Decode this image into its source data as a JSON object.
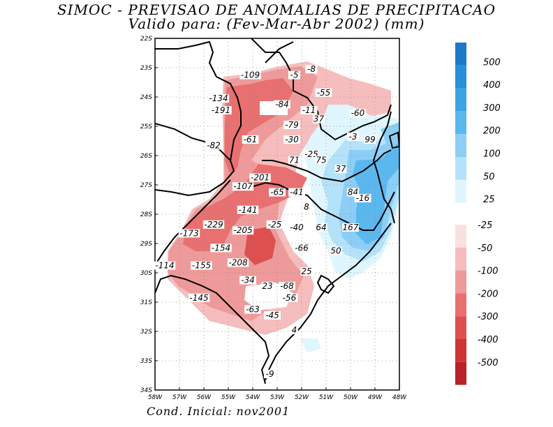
{
  "title": {
    "line1": "SIMOC - PREVISAO DE ANOMALIAS DE PRECIPITACAO",
    "line2": "Valido para: (Fev-Mar-Abr 2002) (mm)"
  },
  "footer": "Cond. Inicial: nov2001",
  "map": {
    "lat_labels": [
      "22S",
      "23S",
      "24S",
      "25S",
      "26S",
      "27S",
      "28S",
      "29S",
      "30S",
      "31S",
      "32S",
      "33S",
      "34S"
    ],
    "lon_labels": [
      "58W",
      "57W",
      "56W",
      "55W",
      "54W",
      "53W",
      "52W",
      "51W",
      "50W",
      "49W",
      "48W"
    ],
    "lon_range": [
      -58,
      -48
    ],
    "lat_range": [
      -34,
      -22
    ],
    "value_labels": [
      {
        "text": "-109",
        "lon": -54.1,
        "lat": -23.3
      },
      {
        "text": "-5",
        "lon": -52.3,
        "lat": -23.3
      },
      {
        "text": "-8",
        "lon": -51.6,
        "lat": -23.1
      },
      {
        "text": "-55",
        "lon": -51.1,
        "lat": -23.9
      },
      {
        "text": "-134",
        "lon": -55.4,
        "lat": -24.1
      },
      {
        "text": "-191",
        "lon": -55.3,
        "lat": -24.5
      },
      {
        "text": "-84",
        "lon": -52.8,
        "lat": -24.3
      },
      {
        "text": "-11",
        "lon": -51.7,
        "lat": -24.5
      },
      {
        "text": "-60",
        "lon": -49.7,
        "lat": -24.6
      },
      {
        "text": "37",
        "lon": -51.3,
        "lat": -24.8
      },
      {
        "text": "-79",
        "lon": -52.4,
        "lat": -25.0
      },
      {
        "text": "-3",
        "lon": -49.9,
        "lat": -25.4
      },
      {
        "text": "99",
        "lon": -49.2,
        "lat": -25.5
      },
      {
        "text": "-82",
        "lon": -55.6,
        "lat": -25.7
      },
      {
        "text": "-61",
        "lon": -54.1,
        "lat": -25.5
      },
      {
        "text": "-30",
        "lon": -52.4,
        "lat": -25.5
      },
      {
        "text": "-25",
        "lon": -51.6,
        "lat": -26.0
      },
      {
        "text": "71",
        "lon": -52.3,
        "lat": -26.2
      },
      {
        "text": "75",
        "lon": -51.2,
        "lat": -26.2
      },
      {
        "text": "37",
        "lon": -50.4,
        "lat": -26.5
      },
      {
        "text": "-201",
        "lon": -53.7,
        "lat": -26.8
      },
      {
        "text": "-107",
        "lon": -54.4,
        "lat": -27.1
      },
      {
        "text": "-65",
        "lon": -53.0,
        "lat": -27.3
      },
      {
        "text": "-41",
        "lon": -52.2,
        "lat": -27.3
      },
      {
        "text": "84",
        "lon": -49.9,
        "lat": -27.3
      },
      {
        "text": "-16",
        "lon": -49.5,
        "lat": -27.5
      },
      {
        "text": "-141",
        "lon": -54.2,
        "lat": -27.9
      },
      {
        "text": "8",
        "lon": -51.8,
        "lat": -27.8
      },
      {
        "text": "-229",
        "lon": -55.6,
        "lat": -28.4
      },
      {
        "text": "-25",
        "lon": -53.1,
        "lat": -28.4
      },
      {
        "text": "-40",
        "lon": -52.2,
        "lat": -28.5
      },
      {
        "text": "64",
        "lon": -51.2,
        "lat": -28.5
      },
      {
        "text": "167",
        "lon": -50.0,
        "lat": -28.5
      },
      {
        "text": "-173",
        "lon": -56.6,
        "lat": -28.7
      },
      {
        "text": "-205",
        "lon": -54.4,
        "lat": -28.6
      },
      {
        "text": "-154",
        "lon": -55.3,
        "lat": -29.2
      },
      {
        "text": "-66",
        "lon": -52.0,
        "lat": -29.2
      },
      {
        "text": "50",
        "lon": -50.6,
        "lat": -29.3
      },
      {
        "text": "-208",
        "lon": -54.6,
        "lat": -29.7
      },
      {
        "text": "-114",
        "lon": -57.6,
        "lat": -29.8
      },
      {
        "text": "-155",
        "lon": -56.1,
        "lat": -29.8
      },
      {
        "text": "25",
        "lon": -51.8,
        "lat": -30.0
      },
      {
        "text": "-34",
        "lon": -54.2,
        "lat": -30.3
      },
      {
        "text": "23",
        "lon": -53.4,
        "lat": -30.5
      },
      {
        "text": "-68",
        "lon": -52.6,
        "lat": -30.5
      },
      {
        "text": "-145",
        "lon": -56.2,
        "lat": -30.9
      },
      {
        "text": "-56",
        "lon": -52.5,
        "lat": -30.9
      },
      {
        "text": "-63",
        "lon": -54.0,
        "lat": -31.3
      },
      {
        "text": "-45",
        "lon": -53.2,
        "lat": -31.5
      },
      {
        "text": "4",
        "lon": -52.3,
        "lat": -32.0
      },
      {
        "text": "-9",
        "lon": -53.3,
        "lat": -33.5
      }
    ]
  },
  "legend": {
    "positive": [
      {
        "label": "500",
        "color": "#1e78c8"
      },
      {
        "label": "400",
        "color": "#2890d6"
      },
      {
        "label": "300",
        "color": "#3ca4e2"
      },
      {
        "label": "200",
        "color": "#5ab8ee"
      },
      {
        "label": "100",
        "color": "#8ccef6"
      },
      {
        "label": "50",
        "color": "#b4e2fa"
      },
      {
        "label": "25",
        "color": "#dff6ff"
      }
    ],
    "negative": [
      {
        "label": "-25",
        "color": "#fbe0e0"
      },
      {
        "label": "-50",
        "color": "#f5bdbd"
      },
      {
        "label": "-100",
        "color": "#ee9a9a"
      },
      {
        "label": "-200",
        "color": "#e87070"
      },
      {
        "label": "-300",
        "color": "#de5050"
      },
      {
        "label": "-400",
        "color": "#cf3434"
      },
      {
        "label": "-500",
        "color": "#b82228"
      }
    ]
  }
}
